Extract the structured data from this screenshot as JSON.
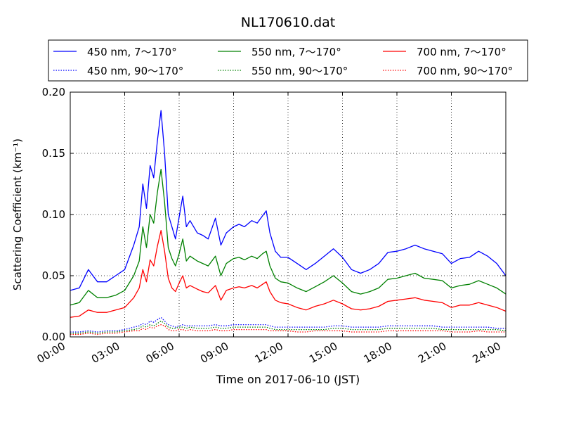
{
  "chart_data": {
    "type": "line",
    "title": "NL170610.dat",
    "xlabel": "Time on 2017-06-10 (JST)",
    "ylabel": "Scattering Coefficient (km⁻¹)",
    "x_unit": "hours",
    "xlim": [
      0,
      24
    ],
    "ylim": [
      0,
      0.2
    ],
    "grid": true,
    "legend_position": "top",
    "x_ticks": [
      {
        "value": 0,
        "label": "00:00"
      },
      {
        "value": 3,
        "label": "03:00"
      },
      {
        "value": 6,
        "label": "06:00"
      },
      {
        "value": 9,
        "label": "09:00"
      },
      {
        "value": 12,
        "label": "12:00"
      },
      {
        "value": 15,
        "label": "15:00"
      },
      {
        "value": 18,
        "label": "18:00"
      },
      {
        "value": 21,
        "label": "21:00"
      },
      {
        "value": 24,
        "label": "24:00"
      }
    ],
    "y_ticks": [
      {
        "value": 0,
        "label": "0.00"
      },
      {
        "value": 0.05,
        "label": "0.05"
      },
      {
        "value": 0.1,
        "label": "0.10"
      },
      {
        "value": 0.15,
        "label": "0.15"
      },
      {
        "value": 0.2,
        "label": "0.20"
      }
    ],
    "x": [
      0,
      0.5,
      1,
      1.5,
      2,
      2.5,
      3,
      3.5,
      3.8,
      4,
      4.2,
      4.4,
      4.6,
      4.8,
      5,
      5.2,
      5.4,
      5.6,
      5.8,
      6,
      6.2,
      6.4,
      6.6,
      7,
      7.3,
      7.6,
      8,
      8.3,
      8.6,
      9,
      9.3,
      9.6,
      10,
      10.3,
      10.6,
      10.8,
      11,
      11.3,
      11.6,
      12,
      12.5,
      13,
      13.5,
      14,
      14.5,
      15,
      15.5,
      16,
      16.5,
      17,
      17.5,
      18,
      18.5,
      19,
      19.5,
      20,
      20.5,
      21,
      21.5,
      22,
      22.5,
      23,
      23.5,
      24
    ],
    "series": [
      {
        "name": "450 nm, 7～170°",
        "color": "#0000ff",
        "style": "solid",
        "values": [
          0.038,
          0.04,
          0.055,
          0.045,
          0.045,
          0.05,
          0.055,
          0.075,
          0.09,
          0.125,
          0.105,
          0.14,
          0.13,
          0.16,
          0.185,
          0.15,
          0.1,
          0.09,
          0.08,
          0.098,
          0.115,
          0.09,
          0.095,
          0.085,
          0.083,
          0.08,
          0.097,
          0.075,
          0.085,
          0.09,
          0.092,
          0.09,
          0.095,
          0.093,
          0.099,
          0.103,
          0.085,
          0.07,
          0.065,
          0.065,
          0.06,
          0.055,
          0.06,
          0.066,
          0.072,
          0.065,
          0.055,
          0.052,
          0.055,
          0.06,
          0.069,
          0.07,
          0.072,
          0.075,
          0.072,
          0.07,
          0.068,
          0.06,
          0.064,
          0.065,
          0.07,
          0.066,
          0.06,
          0.05
        ]
      },
      {
        "name": "550 nm, 7～170°",
        "color": "#008000",
        "style": "solid",
        "values": [
          0.026,
          0.028,
          0.038,
          0.032,
          0.032,
          0.034,
          0.038,
          0.05,
          0.062,
          0.09,
          0.073,
          0.1,
          0.093,
          0.118,
          0.137,
          0.11,
          0.073,
          0.064,
          0.058,
          0.068,
          0.08,
          0.062,
          0.066,
          0.062,
          0.06,
          0.058,
          0.066,
          0.05,
          0.06,
          0.064,
          0.065,
          0.063,
          0.066,
          0.064,
          0.068,
          0.07,
          0.058,
          0.048,
          0.045,
          0.044,
          0.04,
          0.037,
          0.041,
          0.045,
          0.05,
          0.044,
          0.037,
          0.035,
          0.037,
          0.04,
          0.047,
          0.048,
          0.05,
          0.052,
          0.048,
          0.047,
          0.046,
          0.04,
          0.042,
          0.043,
          0.046,
          0.043,
          0.04,
          0.035
        ]
      },
      {
        "name": "700 nm, 7～170°",
        "color": "#ff0000",
        "style": "solid",
        "values": [
          0.016,
          0.017,
          0.022,
          0.02,
          0.02,
          0.022,
          0.024,
          0.032,
          0.04,
          0.055,
          0.045,
          0.063,
          0.058,
          0.074,
          0.087,
          0.07,
          0.048,
          0.04,
          0.037,
          0.044,
          0.05,
          0.04,
          0.042,
          0.039,
          0.037,
          0.036,
          0.042,
          0.03,
          0.038,
          0.04,
          0.041,
          0.04,
          0.042,
          0.04,
          0.043,
          0.045,
          0.037,
          0.03,
          0.028,
          0.027,
          0.024,
          0.022,
          0.025,
          0.027,
          0.03,
          0.027,
          0.023,
          0.022,
          0.023,
          0.025,
          0.029,
          0.03,
          0.031,
          0.032,
          0.03,
          0.029,
          0.028,
          0.024,
          0.026,
          0.026,
          0.028,
          0.026,
          0.024,
          0.021
        ]
      },
      {
        "name": "450 nm, 90～170°",
        "color": "#0000ff",
        "style": "dotted",
        "values": [
          0.004,
          0.004,
          0.005,
          0.004,
          0.005,
          0.005,
          0.006,
          0.008,
          0.009,
          0.011,
          0.01,
          0.013,
          0.012,
          0.014,
          0.016,
          0.013,
          0.01,
          0.009,
          0.008,
          0.009,
          0.01,
          0.009,
          0.009,
          0.009,
          0.009,
          0.009,
          0.01,
          0.009,
          0.009,
          0.01,
          0.01,
          0.01,
          0.01,
          0.01,
          0.01,
          0.01,
          0.009,
          0.008,
          0.008,
          0.008,
          0.008,
          0.008,
          0.008,
          0.008,
          0.009,
          0.009,
          0.008,
          0.008,
          0.008,
          0.008,
          0.009,
          0.009,
          0.009,
          0.009,
          0.009,
          0.009,
          0.008,
          0.008,
          0.008,
          0.008,
          0.008,
          0.008,
          0.007,
          0.007
        ]
      },
      {
        "name": "550 nm, 90～170°",
        "color": "#008000",
        "style": "dotted",
        "values": [
          0.003,
          0.003,
          0.004,
          0.003,
          0.004,
          0.004,
          0.005,
          0.006,
          0.007,
          0.009,
          0.008,
          0.01,
          0.009,
          0.011,
          0.013,
          0.011,
          0.008,
          0.007,
          0.007,
          0.008,
          0.008,
          0.007,
          0.008,
          0.007,
          0.007,
          0.007,
          0.008,
          0.007,
          0.007,
          0.008,
          0.008,
          0.008,
          0.008,
          0.008,
          0.008,
          0.008,
          0.007,
          0.006,
          0.006,
          0.006,
          0.006,
          0.006,
          0.006,
          0.006,
          0.007,
          0.007,
          0.006,
          0.006,
          0.006,
          0.006,
          0.007,
          0.007,
          0.007,
          0.007,
          0.007,
          0.007,
          0.006,
          0.006,
          0.006,
          0.006,
          0.006,
          0.006,
          0.006,
          0.005
        ]
      },
      {
        "name": "700 nm, 90～170°",
        "color": "#ff0000",
        "style": "dotted",
        "values": [
          0.002,
          0.002,
          0.003,
          0.002,
          0.003,
          0.003,
          0.004,
          0.005,
          0.005,
          0.007,
          0.006,
          0.008,
          0.007,
          0.009,
          0.01,
          0.009,
          0.006,
          0.005,
          0.005,
          0.006,
          0.006,
          0.005,
          0.006,
          0.005,
          0.005,
          0.005,
          0.006,
          0.005,
          0.005,
          0.006,
          0.006,
          0.006,
          0.006,
          0.006,
          0.006,
          0.006,
          0.005,
          0.005,
          0.005,
          0.005,
          0.004,
          0.004,
          0.005,
          0.005,
          0.005,
          0.005,
          0.004,
          0.004,
          0.004,
          0.004,
          0.005,
          0.005,
          0.005,
          0.005,
          0.005,
          0.005,
          0.005,
          0.004,
          0.004,
          0.004,
          0.005,
          0.004,
          0.004,
          0.004
        ]
      }
    ]
  }
}
